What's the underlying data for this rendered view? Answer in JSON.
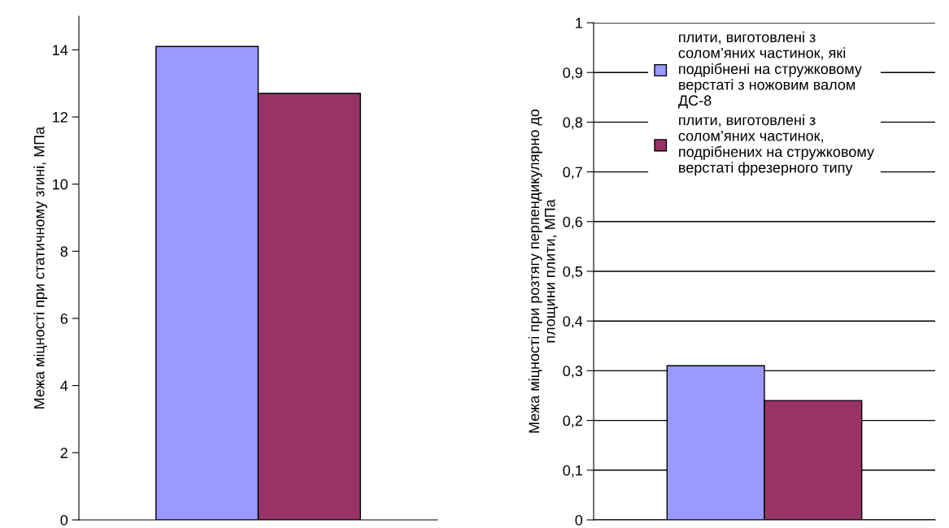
{
  "chart_data": [
    {
      "type": "bar",
      "ylabel": "Межа міцності при статичному згині, МПа",
      "categories": [
        null
      ],
      "series": [
        {
          "color": "#9999ff",
          "values": [
            14.1
          ]
        },
        {
          "color": "#993366",
          "values": [
            12.7
          ]
        }
      ],
      "ylim": [
        0,
        15
      ],
      "yticks": [
        0,
        2,
        4,
        6,
        8,
        10,
        12,
        14
      ],
      "grid": false,
      "legend": false
    },
    {
      "type": "bar",
      "ylabel": "Межа міцності при розтягу перпендикулярно до\nплощини плити, МПа",
      "categories": [
        null
      ],
      "series": [
        {
          "name": "плити, виготовлені з\nсолом’яних частинок, які\nподрібнені на стружковому\nверстаті з ножовим валом\nДС-8",
          "color": "#9999ff",
          "values": [
            0.31
          ]
        },
        {
          "name": "плити, виготовлені з\nсолом’яних частинок,\nподрібнених на стружковому\nверстаті фрезерного типу",
          "color": "#993366",
          "values": [
            0.24
          ]
        }
      ],
      "ylim": [
        0,
        1
      ],
      "yticks": [
        0,
        {
          "value": 0.1,
          "label": "0,1"
        },
        {
          "value": 0.2,
          "label": "0,2"
        },
        {
          "value": 0.3,
          "label": "0,3"
        },
        {
          "value": 0.4,
          "label": "0,4"
        },
        {
          "value": 0.5,
          "label": "0,5"
        },
        {
          "value": 0.6,
          "label": "0,6"
        },
        {
          "value": 0.7,
          "label": "0,7"
        },
        {
          "value": 0.8,
          "label": "0,8"
        },
        {
          "value": 0.9,
          "label": "0,9"
        },
        1
      ],
      "grid": "y",
      "legend": "top"
    }
  ]
}
